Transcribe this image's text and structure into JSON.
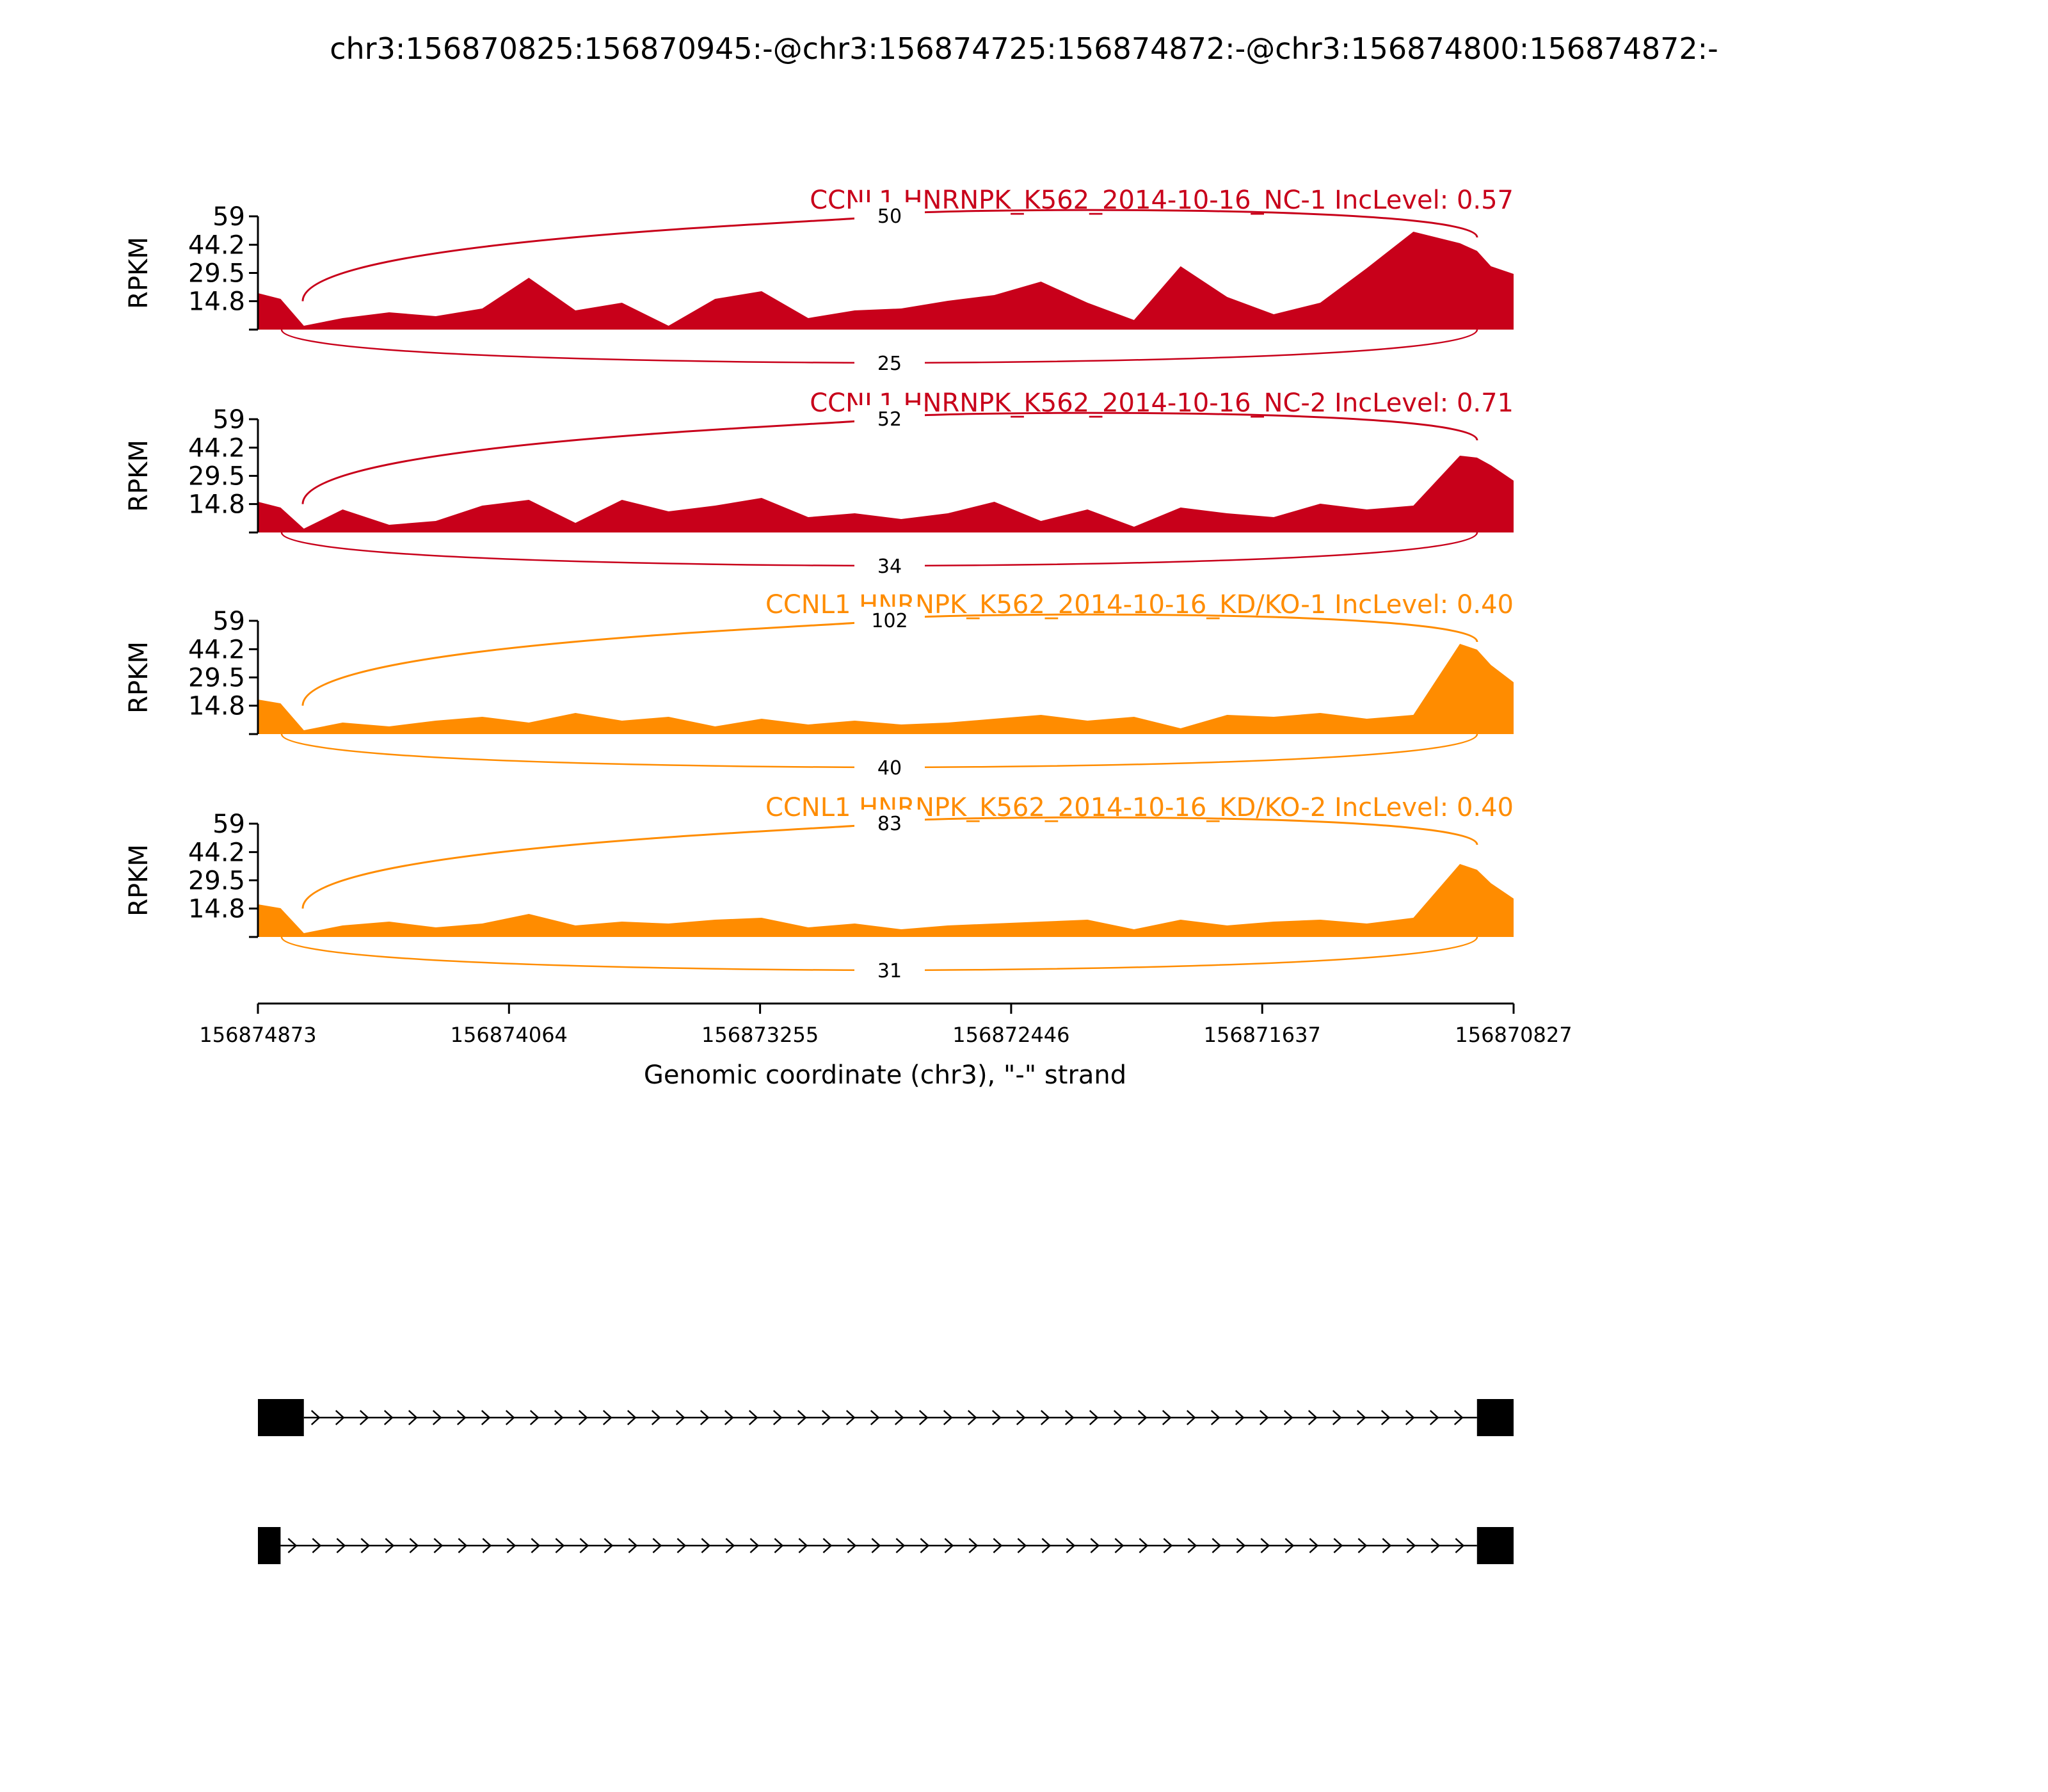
{
  "title": "chr3:156870825:156870945:-@chr3:156874725:156874872:-@chr3:156874800:156874872:-",
  "chart_data": {
    "type": "area",
    "title": "chr3:156870825:156870945:-@chr3:156874725:156874872:-@chr3:156874800:156874872:-",
    "ylabel": "RPKM",
    "xlabel": "Genomic coordinate (chr3), \"-\" strand",
    "ylim": [
      0,
      59
    ],
    "yticks": [
      "14.8",
      "29.5",
      "44.2",
      "59"
    ],
    "xlim": [
      156874873,
      156870827
    ],
    "xticks": [
      "156874873",
      "156874064",
      "156873255",
      "156872446",
      "156871637",
      "156870827"
    ],
    "colors": {
      "NC": "#c8001a",
      "KD": "#ff8c00",
      "structure": "#000000"
    },
    "panels": [
      {
        "label": "CCNL1 HNRNPK_K562_2014-10-16_NC-1 IncLevel: 0.57",
        "color": "#c8001a",
        "junction_top": "50",
        "junction_bottom": "25",
        "coverage": {
          "x": [
            156874873,
            156874800,
            156874725,
            156874600,
            156874450,
            156874300,
            156874150,
            156874000,
            156873850,
            156873700,
            156873550,
            156873400,
            156873250,
            156873100,
            156872950,
            156872800,
            156872650,
            156872500,
            156872350,
            156872200,
            156872050,
            156871900,
            156871750,
            156871600,
            156871450,
            156871300,
            156871150,
            156871000,
            156870945,
            156870900,
            156870827
          ],
          "y": [
            19,
            16,
            2,
            6,
            9,
            7,
            11,
            27,
            10,
            14,
            2,
            16,
            20,
            6,
            10,
            11,
            15,
            18,
            25,
            14,
            5,
            33,
            17,
            8,
            14,
            32,
            51,
            45,
            41,
            33,
            29
          ]
        }
      },
      {
        "label": "CCNL1 HNRNPK_K562_2014-10-16_NC-2 IncLevel: 0.71",
        "color": "#c8001a",
        "junction_top": "52",
        "junction_bottom": "34",
        "coverage": {
          "x": [
            156874873,
            156874800,
            156874725,
            156874600,
            156874450,
            156874300,
            156874150,
            156874000,
            156873850,
            156873700,
            156873550,
            156873400,
            156873250,
            156873100,
            156872950,
            156872800,
            156872650,
            156872500,
            156872350,
            156872200,
            156872050,
            156871900,
            156871750,
            156871600,
            156871450,
            156871300,
            156871150,
            156871000,
            156870945,
            156870900,
            156870827
          ],
          "y": [
            16,
            13,
            2,
            12,
            4,
            6,
            14,
            17,
            5,
            17,
            11,
            14,
            18,
            8,
            10,
            7,
            10,
            16,
            6,
            12,
            3,
            13,
            10,
            8,
            15,
            12,
            14,
            40,
            39,
            35,
            27
          ]
        }
      },
      {
        "label": "CCNL1 HNRNPK_K562_2014-10-16_KD/KO-1 IncLevel: 0.40",
        "color": "#ff8c00",
        "junction_top": "102",
        "junction_bottom": "40",
        "coverage": {
          "x": [
            156874873,
            156874800,
            156874725,
            156874600,
            156874450,
            156874300,
            156874150,
            156874000,
            156873850,
            156873700,
            156873550,
            156873400,
            156873250,
            156873100,
            156872950,
            156872800,
            156872650,
            156872500,
            156872350,
            156872200,
            156872050,
            156871900,
            156871750,
            156871600,
            156871450,
            156871300,
            156871150,
            156871000,
            156870945,
            156870900,
            156870827
          ],
          "y": [
            18,
            16,
            2,
            6,
            4,
            7,
            9,
            6,
            11,
            7,
            9,
            4,
            8,
            5,
            7,
            5,
            6,
            8,
            10,
            7,
            9,
            3,
            10,
            9,
            11,
            8,
            10,
            47,
            44,
            36,
            27
          ]
        }
      },
      {
        "label": "CCNL1 HNRNPK_K562_2014-10-16_KD/KO-2 IncLevel: 0.40",
        "color": "#ff8c00",
        "junction_top": "83",
        "junction_bottom": "31",
        "coverage": {
          "x": [
            156874873,
            156874800,
            156874725,
            156874600,
            156874450,
            156874300,
            156874150,
            156874000,
            156873850,
            156873700,
            156873550,
            156873400,
            156873250,
            156873100,
            156872950,
            156872800,
            156872650,
            156872500,
            156872350,
            156872200,
            156872050,
            156871900,
            156871750,
            156871600,
            156871450,
            156871300,
            156871150,
            156871000,
            156870945,
            156870900,
            156870827
          ],
          "y": [
            17,
            15,
            2,
            6,
            8,
            5,
            7,
            12,
            6,
            8,
            7,
            9,
            10,
            5,
            7,
            4,
            6,
            7,
            8,
            9,
            4,
            9,
            6,
            8,
            9,
            7,
            10,
            38,
            35,
            28,
            20
          ]
        }
      }
    ],
    "structures": [
      {
        "exons": [
          [
            156874873,
            156874725
          ],
          [
            156870945,
            156870827
          ]
        ]
      },
      {
        "exons": [
          [
            156874873,
            156874800
          ],
          [
            156870945,
            156870827
          ]
        ]
      }
    ]
  }
}
